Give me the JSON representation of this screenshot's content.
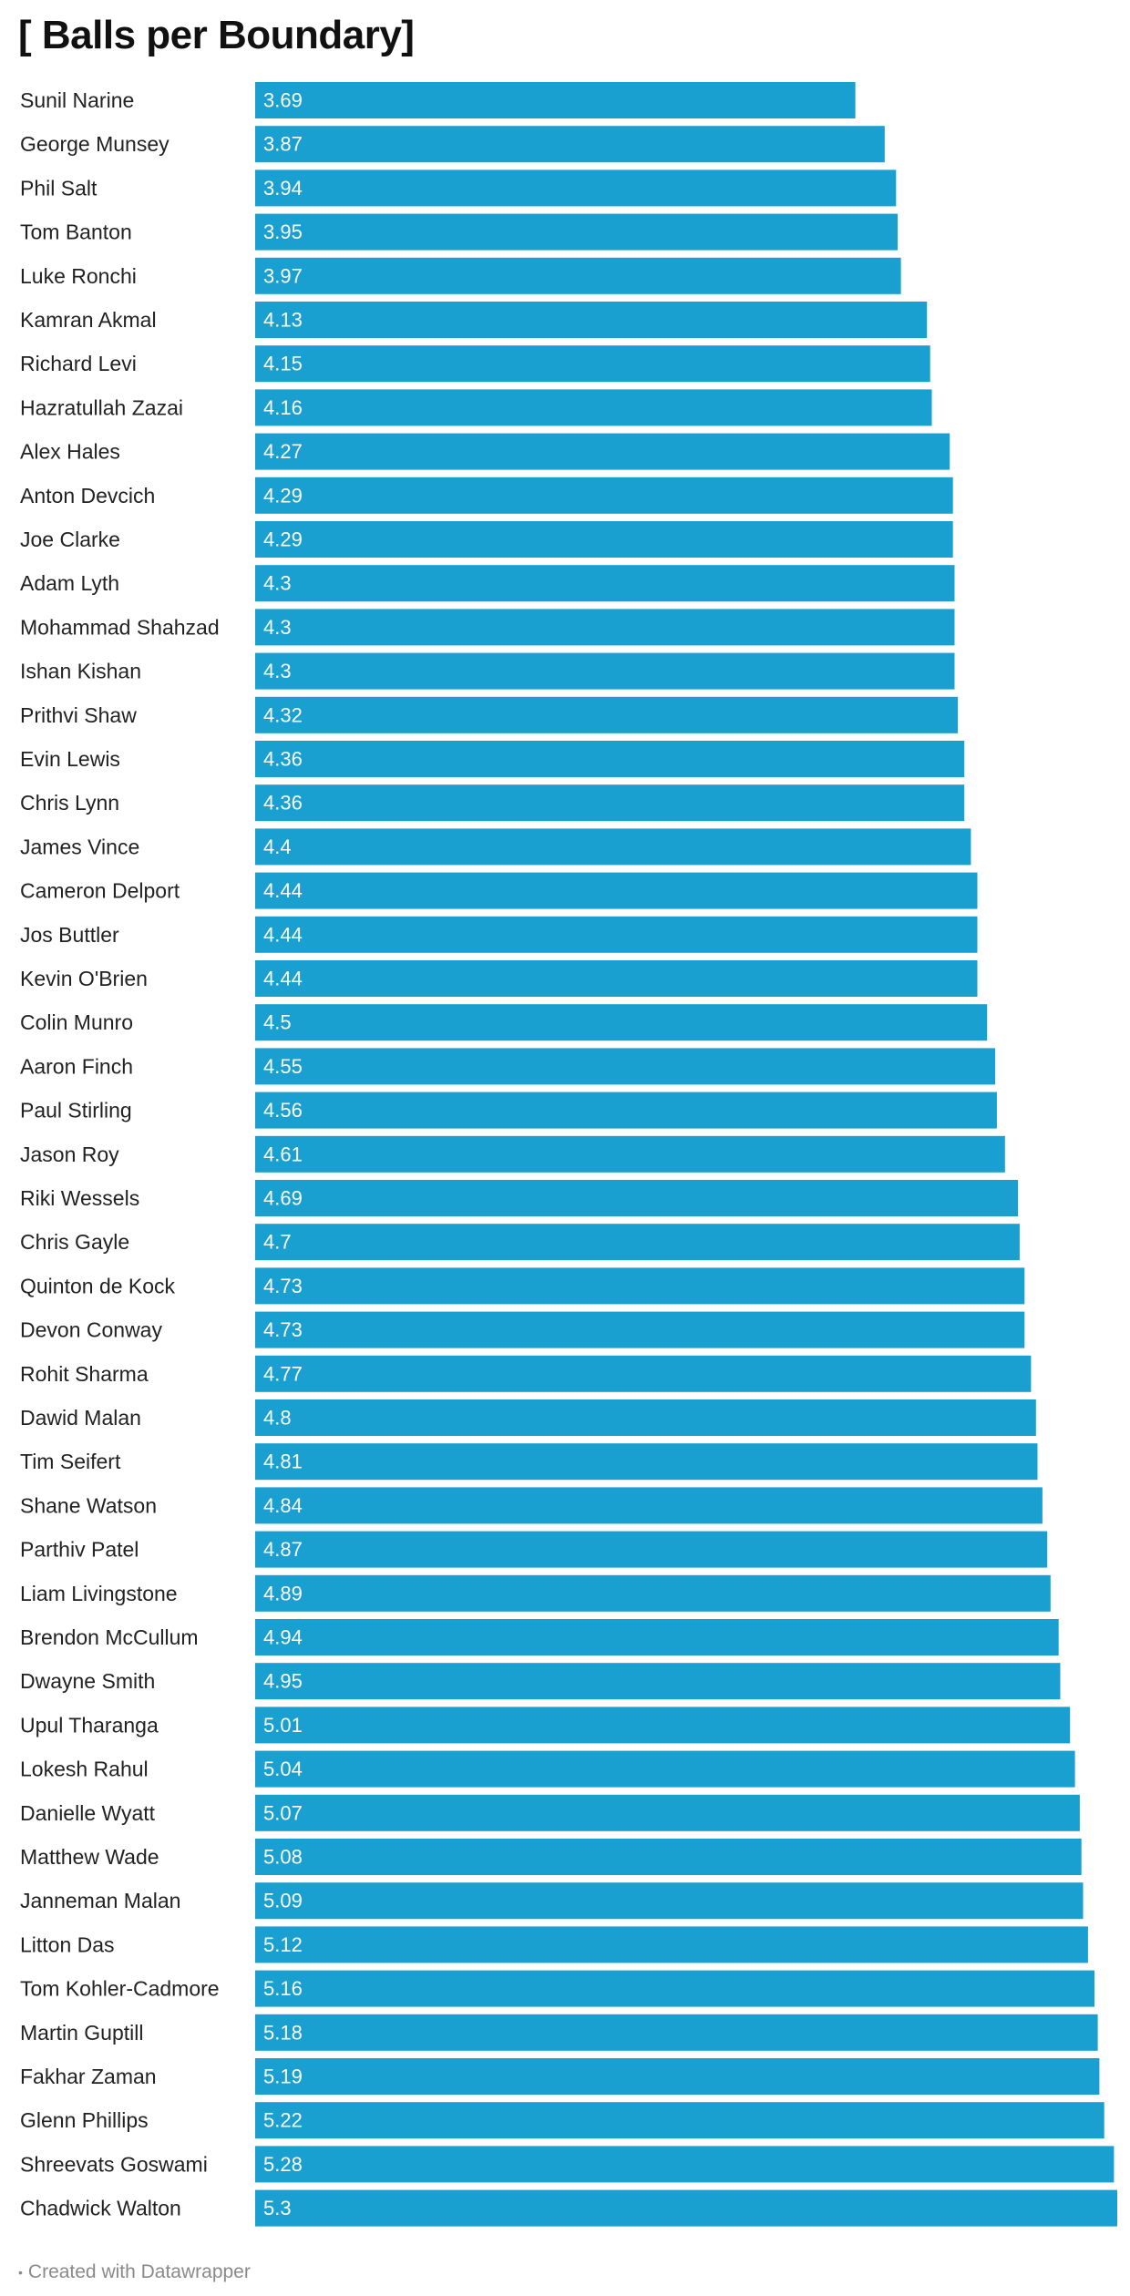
{
  "chart_data": {
    "type": "bar",
    "orientation": "horizontal",
    "title": "[ Balls per Boundary]",
    "xlabel": "",
    "ylabel": "",
    "grid": false,
    "xlim": [
      0,
      5.3
    ],
    "bar_color": "#1aa0d0",
    "label_color": "#ffffff",
    "categories": [
      "Sunil Narine",
      "George Munsey",
      "Phil Salt",
      "Tom Banton",
      "Luke Ronchi",
      "Kamran Akmal",
      "Richard Levi",
      "Hazratullah Zazai",
      "Alex Hales",
      "Anton Devcich",
      "Joe Clarke",
      "Adam Lyth",
      "Mohammad Shahzad",
      "Ishan Kishan",
      "Prithvi Shaw",
      "Evin Lewis",
      "Chris Lynn",
      "James Vince",
      "Cameron Delport",
      "Jos Buttler",
      "Kevin O'Brien",
      "Colin Munro",
      "Aaron Finch",
      "Paul Stirling",
      "Jason Roy",
      "Riki Wessels",
      "Chris Gayle",
      "Quinton de Kock",
      "Devon Conway",
      "Rohit Sharma",
      "Dawid Malan",
      "Tim Seifert",
      "Shane Watson",
      "Parthiv Patel",
      "Liam Livingstone",
      "Brendon McCullum",
      "Dwayne Smith",
      "Upul Tharanga",
      "Lokesh Rahul",
      "Danielle Wyatt",
      "Matthew Wade",
      "Janneman Malan",
      "Litton Das",
      "Tom Kohler-Cadmore",
      "Martin Guptill",
      "Fakhar Zaman",
      "Glenn Phillips",
      "Shreevats Goswami",
      "Chadwick Walton"
    ],
    "values": [
      3.69,
      3.87,
      3.94,
      3.95,
      3.97,
      4.13,
      4.15,
      4.16,
      4.27,
      4.29,
      4.29,
      4.3,
      4.3,
      4.3,
      4.32,
      4.36,
      4.36,
      4.4,
      4.44,
      4.44,
      4.44,
      4.5,
      4.55,
      4.56,
      4.61,
      4.69,
      4.7,
      4.73,
      4.73,
      4.77,
      4.8,
      4.81,
      4.84,
      4.87,
      4.89,
      4.94,
      4.95,
      5.01,
      5.04,
      5.07,
      5.08,
      5.09,
      5.12,
      5.16,
      5.18,
      5.19,
      5.22,
      5.28,
      5.3
    ]
  },
  "footer": {
    "dot": "•",
    "text": "Created with Datawrapper"
  }
}
